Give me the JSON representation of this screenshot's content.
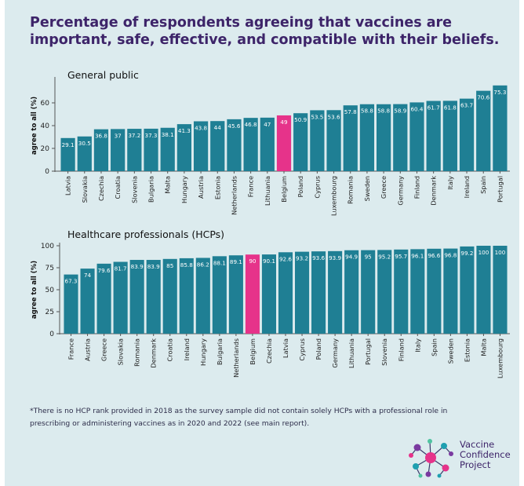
{
  "title": "Percentage of respondents agreeing that vaccines are important, safe, effective, and compatible with their beliefs.",
  "footnote": "*There is no HCP rank provided in 2018 as the survey sample did not contain solely HCPs with a professional role in prescribing or administering vaccines as in 2020 and 2022 (see main report).",
  "logo": {
    "line1": "Vaccine",
    "line2": "Confidence",
    "line3": "Project"
  },
  "colors": {
    "bar": "#1f7f94",
    "highlight": "#e6338a",
    "axis": "#555555",
    "text": "#222222",
    "title": "#3d2469"
  },
  "chart_data": [
    {
      "type": "bar",
      "title": "General public",
      "ylabel": "agree to all (%)",
      "ylim": [
        0,
        80
      ],
      "yticks": [
        0,
        20,
        40,
        60
      ],
      "highlight": "Belgium",
      "categories": [
        "Latvia",
        "Slovakia",
        "Czechia",
        "Croatia",
        "Slovenia",
        "Bulgaria",
        "Malta",
        "Hungary",
        "Austria",
        "Estonia",
        "Netherlands",
        "France",
        "Lithuania",
        "Belgium",
        "Poland",
        "Cyprus",
        "Luxembourg",
        "Romania",
        "Sweden",
        "Greece",
        "Germany",
        "Finland",
        "Denmark",
        "Italy",
        "Ireland",
        "Spain",
        "Portugal"
      ],
      "values": [
        29.1,
        30.5,
        36.8,
        37,
        37.2,
        37.3,
        38.1,
        41.3,
        43.8,
        44,
        45.6,
        46.8,
        47,
        49,
        50.9,
        53.5,
        53.6,
        57.8,
        58.8,
        58.8,
        58.9,
        60.4,
        61.7,
        61.8,
        63.7,
        70.6,
        75.3
      ]
    },
    {
      "type": "bar",
      "title": "Healthcare professionals (HCPs)",
      "ylabel": "agree to all (%)",
      "ylim": [
        0,
        100
      ],
      "yticks": [
        0,
        25,
        50,
        75,
        100
      ],
      "highlight": "Belgium",
      "categories": [
        "France",
        "Austria",
        "Greece",
        "Slovakia",
        "Romania",
        "Denmark",
        "Croatia",
        "Ireland",
        "Hungary",
        "Bulgaria",
        "Netherlands",
        "Belgium",
        "Czechia",
        "Latvia",
        "Cyprus",
        "Poland",
        "Germany",
        "Lithuania",
        "Portugal",
        "Slovenia",
        "Finland",
        "Italy",
        "Spain",
        "Sweden",
        "Estonia",
        "Malta",
        "Luxembourg"
      ],
      "values": [
        67.3,
        74,
        79.6,
        81.7,
        83.9,
        83.9,
        85,
        85.8,
        86.2,
        88.1,
        89.1,
        90,
        90.1,
        92.6,
        93.2,
        93.6,
        93.9,
        94.9,
        95,
        95.2,
        95.7,
        96.1,
        96.6,
        96.8,
        99.2,
        100,
        100
      ]
    }
  ]
}
